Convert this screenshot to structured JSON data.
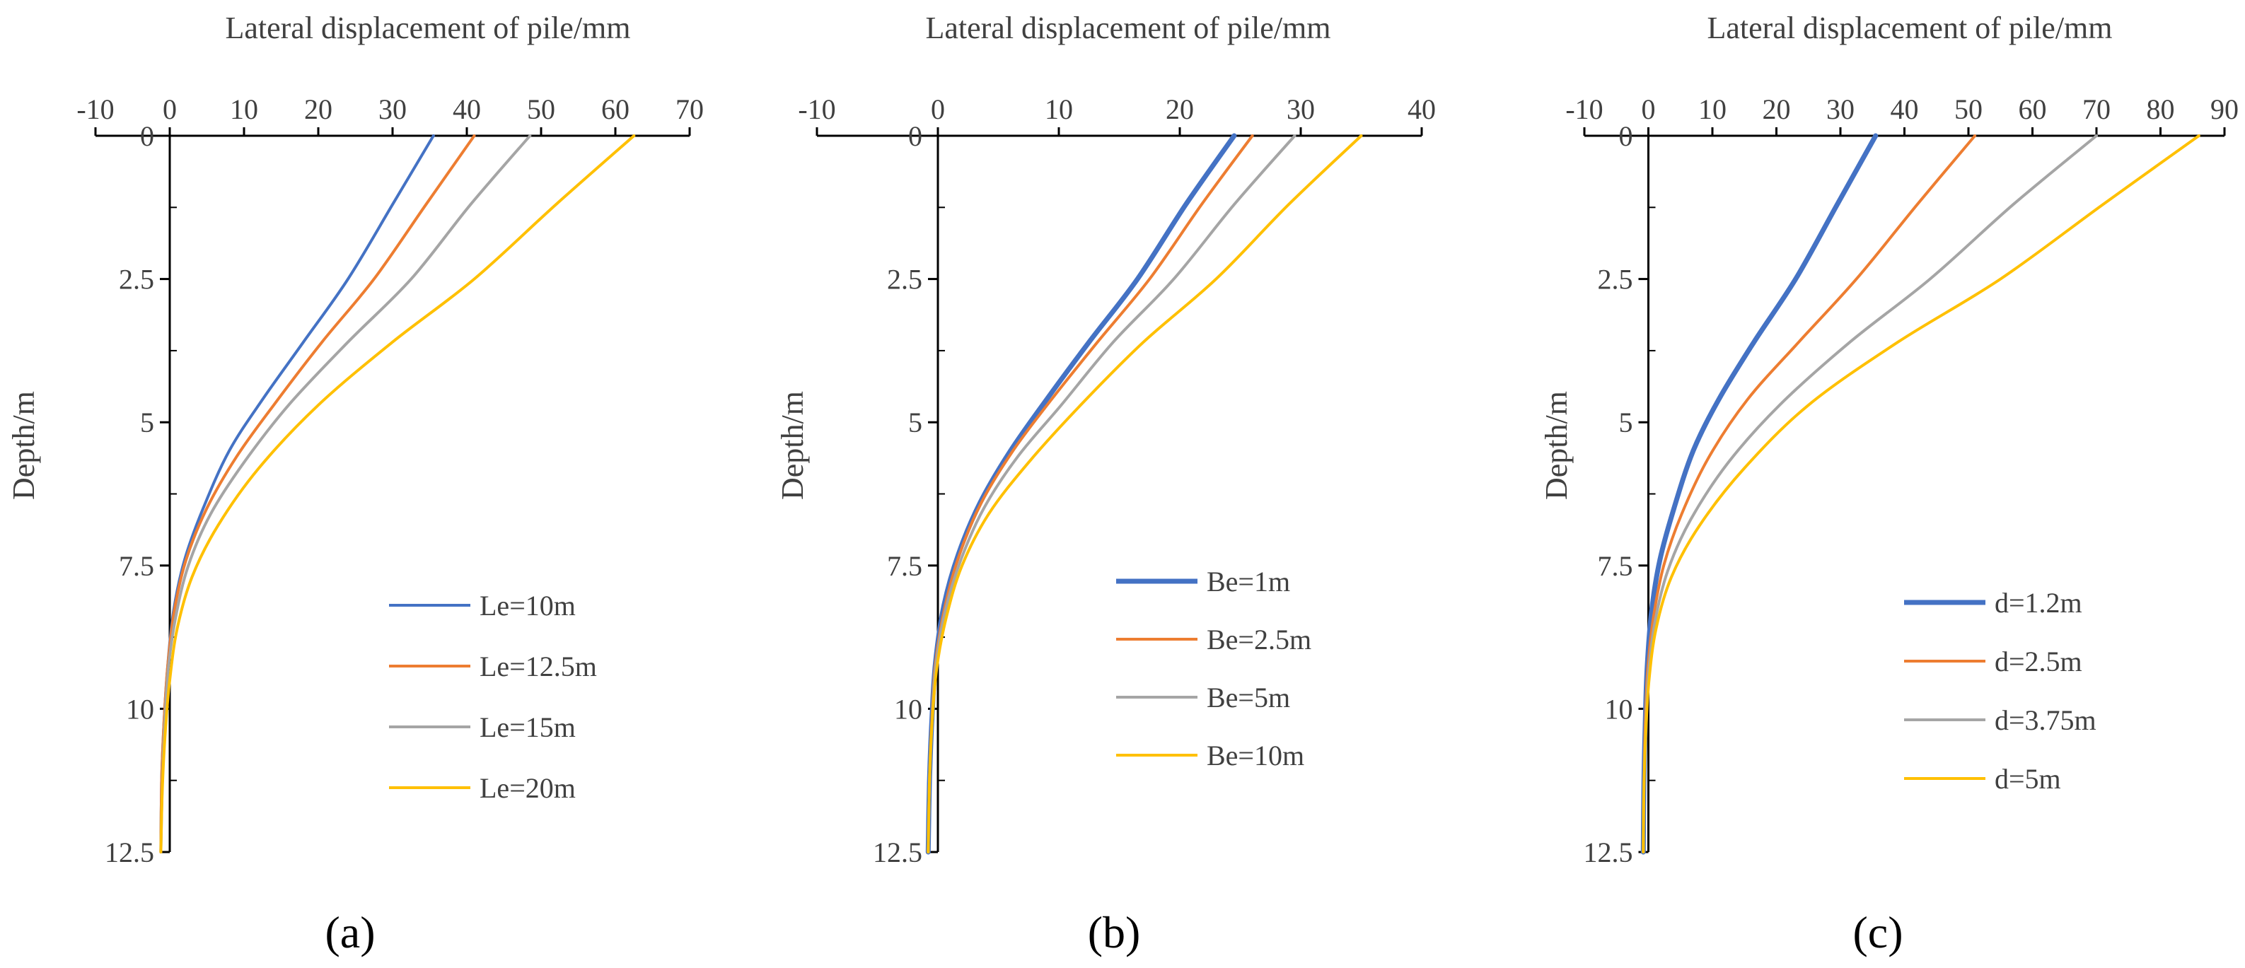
{
  "chart_data": [
    {
      "type": "line",
      "panel_label": "(a)",
      "title": "",
      "xlabel": "Lateral displacement of pile/mm",
      "ylabel": "Depth/m",
      "x_axis_position": "top",
      "y_inverted": true,
      "xlim": [
        -10,
        70
      ],
      "xticks": [
        "-10",
        "0",
        "10",
        "20",
        "30",
        "40",
        "50",
        "60",
        "70"
      ],
      "ylim": [
        0,
        12.5
      ],
      "yticks": [
        "0",
        "2.5",
        "5",
        "7.5",
        "10",
        "12.5"
      ],
      "legend_position": "bottom-right",
      "grid": false,
      "series": [
        {
          "name": "Le=10m",
          "color": "#4472C4",
          "bold": false,
          "points": [
            [
              35.5,
              0
            ],
            [
              30,
              1.2
            ],
            [
              24,
              2.5
            ],
            [
              18,
              3.6
            ],
            [
              12.5,
              4.6
            ],
            [
              8,
              5.5
            ],
            [
              4.5,
              6.5
            ],
            [
              2,
              7.4
            ],
            [
              0.5,
              8.3
            ],
            [
              -0.3,
              9.3
            ],
            [
              -0.8,
              10.3
            ],
            [
              -1.1,
              11.3
            ],
            [
              -1.2,
              12.5
            ]
          ]
        },
        {
          "name": "Le=12.5m",
          "color": "#ED7D31",
          "bold": false,
          "points": [
            [
              41,
              0
            ],
            [
              34.5,
              1.2
            ],
            [
              27.5,
              2.5
            ],
            [
              20.5,
              3.6
            ],
            [
              14,
              4.7
            ],
            [
              9,
              5.6
            ],
            [
              5,
              6.5
            ],
            [
              2.2,
              7.4
            ],
            [
              0.6,
              8.3
            ],
            [
              -0.3,
              9.3
            ],
            [
              -0.8,
              10.3
            ],
            [
              -1.1,
              11.3
            ],
            [
              -1.2,
              12.5
            ]
          ]
        },
        {
          "name": "Le=15m",
          "color": "#A5A5A5",
          "bold": false,
          "points": [
            [
              48.5,
              0
            ],
            [
              40.5,
              1.2
            ],
            [
              32.5,
              2.5
            ],
            [
              24,
              3.6
            ],
            [
              16,
              4.7
            ],
            [
              10,
              5.7
            ],
            [
              5.5,
              6.6
            ],
            [
              2.5,
              7.5
            ],
            [
              0.8,
              8.4
            ],
            [
              -0.2,
              9.3
            ],
            [
              -0.7,
              10.3
            ],
            [
              -1,
              11.3
            ],
            [
              -1.2,
              12.5
            ]
          ]
        },
        {
          "name": "Le=20m",
          "color": "#FFC000",
          "bold": false,
          "points": [
            [
              62.5,
              0
            ],
            [
              52,
              1.2
            ],
            [
              41,
              2.5
            ],
            [
              30,
              3.6
            ],
            [
              20,
              4.7
            ],
            [
              12,
              5.8
            ],
            [
              6.5,
              6.8
            ],
            [
              3,
              7.7
            ],
            [
              1,
              8.6
            ],
            [
              0,
              9.5
            ],
            [
              -0.6,
              10.4
            ],
            [
              -1,
              11.4
            ],
            [
              -1.2,
              12.5
            ]
          ]
        }
      ]
    },
    {
      "type": "line",
      "panel_label": "(b)",
      "title": "",
      "xlabel": "Lateral displacement of pile/mm",
      "ylabel": "Depth/m",
      "x_axis_position": "top",
      "y_inverted": true,
      "xlim": [
        -10,
        40
      ],
      "xticks": [
        "-10",
        "0",
        "10",
        "20",
        "30",
        "40"
      ],
      "ylim": [
        0,
        12.5
      ],
      "yticks": [
        "0",
        "2.5",
        "5",
        "7.5",
        "10",
        "12.5"
      ],
      "legend_position": "bottom-right",
      "grid": false,
      "series": [
        {
          "name": "Be=1m",
          "color": "#4472C4",
          "bold": true,
          "points": [
            [
              24.5,
              0
            ],
            [
              20.5,
              1.2
            ],
            [
              16.5,
              2.5
            ],
            [
              12.5,
              3.6
            ],
            [
              9,
              4.6
            ],
            [
              6,
              5.5
            ],
            [
              3.5,
              6.4
            ],
            [
              1.7,
              7.3
            ],
            [
              0.5,
              8.2
            ],
            [
              -0.2,
              9.2
            ],
            [
              -0.5,
              10.2
            ],
            [
              -0.7,
              11.3
            ],
            [
              -0.8,
              12.5
            ]
          ]
        },
        {
          "name": "Be=2.5m",
          "color": "#ED7D31",
          "bold": false,
          "points": [
            [
              26,
              0
            ],
            [
              21.8,
              1.2
            ],
            [
              17.5,
              2.5
            ],
            [
              13.2,
              3.6
            ],
            [
              9.4,
              4.6
            ],
            [
              6.2,
              5.5
            ],
            [
              3.6,
              6.4
            ],
            [
              1.8,
              7.3
            ],
            [
              0.6,
              8.2
            ],
            [
              -0.2,
              9.2
            ],
            [
              -0.5,
              10.2
            ],
            [
              -0.7,
              11.3
            ],
            [
              -0.8,
              12.5
            ]
          ]
        },
        {
          "name": "Be=5m",
          "color": "#A5A5A5",
          "bold": false,
          "points": [
            [
              29.5,
              0
            ],
            [
              24.5,
              1.2
            ],
            [
              19.5,
              2.5
            ],
            [
              14.5,
              3.6
            ],
            [
              10.2,
              4.7
            ],
            [
              6.6,
              5.6
            ],
            [
              3.8,
              6.5
            ],
            [
              1.9,
              7.4
            ],
            [
              0.6,
              8.3
            ],
            [
              -0.2,
              9.3
            ],
            [
              -0.5,
              10.3
            ],
            [
              -0.7,
              11.3
            ],
            [
              -0.8,
              12.5
            ]
          ]
        },
        {
          "name": "Be=10m",
          "color": "#FFC000",
          "bold": false,
          "points": [
            [
              35,
              0
            ],
            [
              29,
              1.2
            ],
            [
              23,
              2.5
            ],
            [
              17,
              3.6
            ],
            [
              11.8,
              4.7
            ],
            [
              7.5,
              5.7
            ],
            [
              4.2,
              6.6
            ],
            [
              2,
              7.5
            ],
            [
              0.7,
              8.4
            ],
            [
              -0.1,
              9.3
            ],
            [
              -0.5,
              10.3
            ],
            [
              -0.7,
              11.3
            ],
            [
              -0.8,
              12.5
            ]
          ]
        }
      ]
    },
    {
      "type": "line",
      "panel_label": "(c)",
      "title": "",
      "xlabel": "Lateral displacement of pile/mm",
      "ylabel": "Depth/m",
      "x_axis_position": "top",
      "y_inverted": true,
      "xlim": [
        -10,
        90
      ],
      "xticks": [
        "-10",
        "0",
        "10",
        "20",
        "30",
        "40",
        "50",
        "60",
        "70",
        "80",
        "90"
      ],
      "ylim": [
        0,
        12.5
      ],
      "yticks": [
        "0",
        "2.5",
        "5",
        "7.5",
        "10",
        "12.5"
      ],
      "legend_position": "bottom-right",
      "grid": false,
      "series": [
        {
          "name": "d=1.2m",
          "color": "#4472C4",
          "bold": true,
          "points": [
            [
              35.5,
              0
            ],
            [
              29.5,
              1.2
            ],
            [
              23,
              2.5
            ],
            [
              16.5,
              3.6
            ],
            [
              11,
              4.6
            ],
            [
              7,
              5.5
            ],
            [
              4,
              6.5
            ],
            [
              1.8,
              7.4
            ],
            [
              0.5,
              8.3
            ],
            [
              -0.2,
              9.3
            ],
            [
              -0.5,
              10.3
            ],
            [
              -0.7,
              11.3
            ],
            [
              -0.8,
              12.5
            ]
          ]
        },
        {
          "name": "d=2.5m",
          "color": "#ED7D31",
          "bold": false,
          "points": [
            [
              51,
              0
            ],
            [
              42,
              1.2
            ],
            [
              32.5,
              2.5
            ],
            [
              23.5,
              3.6
            ],
            [
              15.5,
              4.6
            ],
            [
              9.5,
              5.6
            ],
            [
              5.2,
              6.6
            ],
            [
              2.4,
              7.5
            ],
            [
              0.8,
              8.4
            ],
            [
              -0.1,
              9.3
            ],
            [
              -0.5,
              10.3
            ],
            [
              -0.7,
              11.3
            ],
            [
              -0.8,
              12.5
            ]
          ]
        },
        {
          "name": "d=3.75m",
          "color": "#A5A5A5",
          "bold": false,
          "points": [
            [
              70,
              0
            ],
            [
              57,
              1.2
            ],
            [
              44,
              2.5
            ],
            [
              31.5,
              3.6
            ],
            [
              20.5,
              4.7
            ],
            [
              12.5,
              5.7
            ],
            [
              6.6,
              6.7
            ],
            [
              3,
              7.6
            ],
            [
              1,
              8.5
            ],
            [
              0,
              9.4
            ],
            [
              -0.4,
              10.3
            ],
            [
              -0.7,
              11.3
            ],
            [
              -0.8,
              12.5
            ]
          ]
        },
        {
          "name": "d=5m",
          "color": "#FFC000",
          "bold": false,
          "points": [
            [
              86,
              0
            ],
            [
              71,
              1.2
            ],
            [
              55,
              2.5
            ],
            [
              39,
              3.6
            ],
            [
              25,
              4.7
            ],
            [
              15,
              5.8
            ],
            [
              8,
              6.8
            ],
            [
              3.6,
              7.7
            ],
            [
              1.2,
              8.6
            ],
            [
              0.1,
              9.5
            ],
            [
              -0.4,
              10.4
            ],
            [
              -0.7,
              11.4
            ],
            [
              -0.8,
              12.5
            ]
          ]
        }
      ]
    }
  ]
}
